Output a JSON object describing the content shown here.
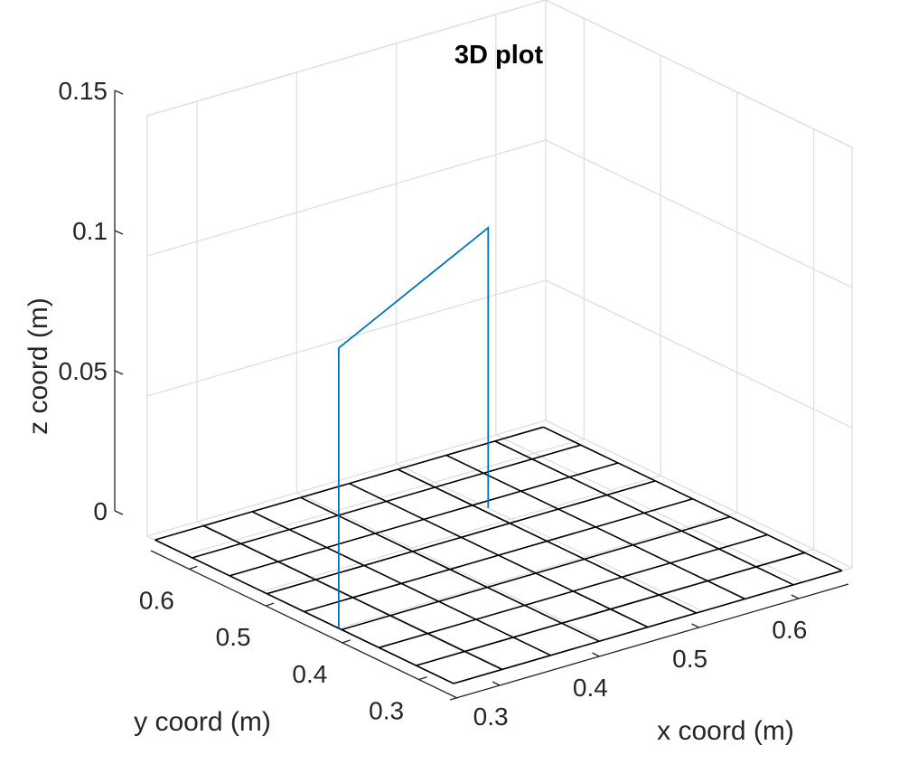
{
  "chart_data": {
    "type": "line3d",
    "title": "3D plot",
    "xlabel": "x coord (m)",
    "ylabel": "y coord (m)",
    "zlabel": "z coord (m)",
    "xlim": [
      0.25,
      0.65
    ],
    "ylim": [
      0.25,
      0.65
    ],
    "zlim": [
      0,
      0.15
    ],
    "xticks": [
      0.3,
      0.4,
      0.5,
      0.6
    ],
    "xtick_labels": [
      "0.3",
      "0.4",
      "0.5",
      "0.6"
    ],
    "yticks": [
      0.3,
      0.4,
      0.5,
      0.6
    ],
    "ytick_labels": [
      "0.3",
      "0.4",
      "0.5",
      "0.6"
    ],
    "zticks": [
      0,
      0.05,
      0.1,
      0.15
    ],
    "ztick_labels": [
      "0",
      "0.05",
      "0.1",
      "0.15"
    ],
    "grid": true,
    "floor_mesh": {
      "x_from": 0.25,
      "x_to": 0.64,
      "x_divisions": 8,
      "y_from": 0.25,
      "y_to": 0.64,
      "y_divisions": 8,
      "z": 0,
      "color": "#000000"
    },
    "series": [
      {
        "points": [
          {
            "x": 0.25,
            "y": 0.4,
            "z": 0.0
          },
          {
            "x": 0.25,
            "y": 0.4,
            "z": 0.1
          },
          {
            "x": 0.5,
            "y": 0.53,
            "z": 0.1
          },
          {
            "x": 0.5,
            "y": 0.53,
            "z": 0.0
          }
        ],
        "color": "#0072bd"
      }
    ]
  }
}
